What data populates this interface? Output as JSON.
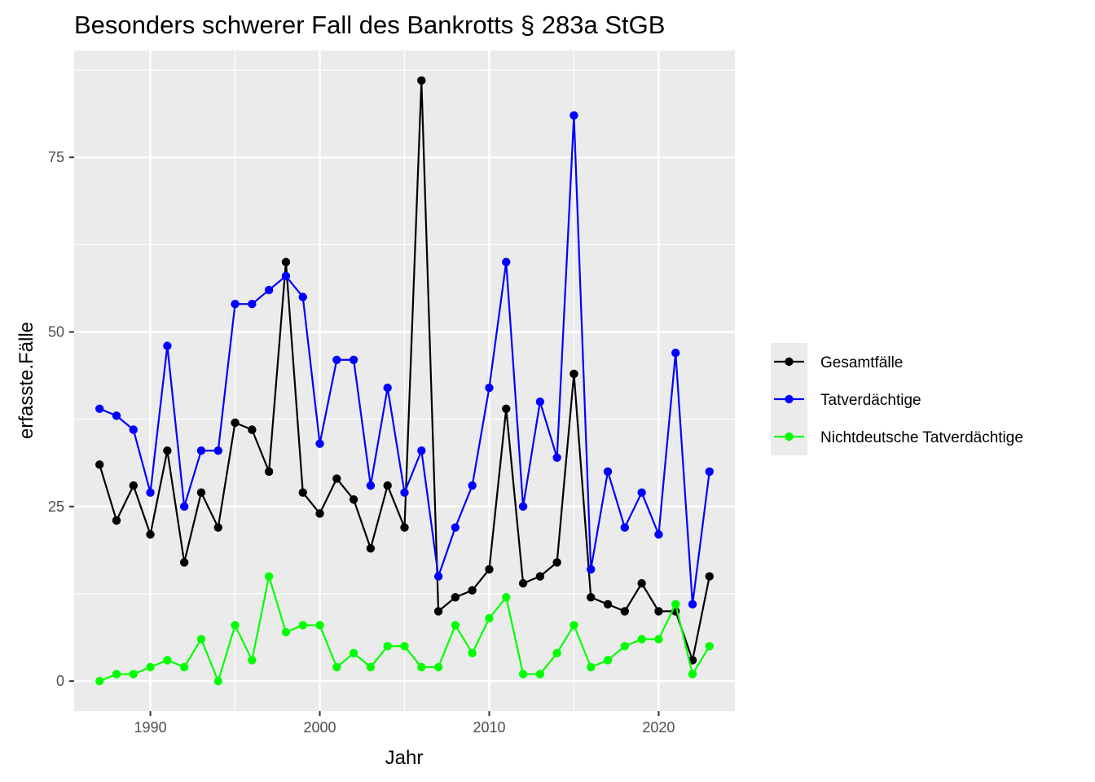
{
  "chart_data": {
    "type": "line",
    "title": "Besonders schwerer Fall des Bankrotts § 283a StGB",
    "xlabel": "Jahr",
    "ylabel": "erfasste.Fälle",
    "xlim": [
      1985.5,
      2024.5
    ],
    "ylim": [
      -4.3,
      90.3
    ],
    "x_ticks": [
      1990,
      2000,
      2010,
      2020
    ],
    "y_ticks": [
      0,
      25,
      50,
      75
    ],
    "grid": true,
    "legend_position": "right",
    "x": [
      1987,
      1988,
      1989,
      1990,
      1991,
      1992,
      1993,
      1994,
      1995,
      1996,
      1997,
      1998,
      1999,
      2000,
      2001,
      2002,
      2003,
      2004,
      2005,
      2006,
      2007,
      2008,
      2009,
      2010,
      2011,
      2012,
      2013,
      2014,
      2015,
      2016,
      2017,
      2018,
      2019,
      2020,
      2021,
      2022,
      2023
    ],
    "series": [
      {
        "name": "Gesamtfälle",
        "color": "#000000",
        "values": [
          31,
          23,
          28,
          21,
          33,
          17,
          27,
          22,
          37,
          36,
          30,
          60,
          27,
          24,
          29,
          26,
          19,
          28,
          22,
          86,
          10,
          12,
          13,
          16,
          39,
          14,
          15,
          17,
          44,
          12,
          11,
          10,
          14,
          10,
          10,
          3,
          15
        ]
      },
      {
        "name": "Tatverdächtige",
        "color": "#0000ff",
        "values": [
          39,
          38,
          36,
          27,
          48,
          25,
          33,
          33,
          54,
          54,
          56,
          58,
          55,
          34,
          46,
          46,
          28,
          42,
          27,
          33,
          15,
          22,
          28,
          42,
          60,
          25,
          40,
          32,
          81,
          16,
          30,
          22,
          27,
          21,
          47,
          11,
          30
        ]
      },
      {
        "name": "Nichtdeutsche Tatverdächtige",
        "color": "#00ff00",
        "values": [
          0,
          1,
          1,
          2,
          3,
          2,
          6,
          0,
          8,
          3,
          15,
          7,
          8,
          8,
          2,
          4,
          2,
          5,
          5,
          2,
          2,
          8,
          4,
          9,
          12,
          1,
          1,
          4,
          8,
          2,
          3,
          5,
          6,
          6,
          11,
          1,
          5
        ]
      }
    ]
  }
}
